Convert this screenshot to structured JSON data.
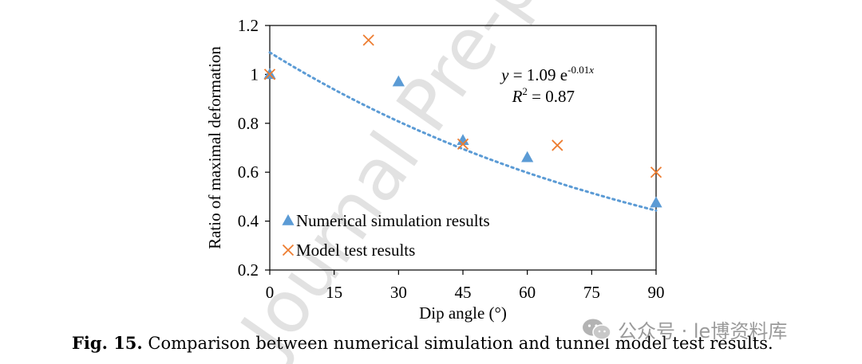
{
  "chart_data": {
    "type": "scatter",
    "xlabel": "Dip angle (°)",
    "ylabel": "Ratio of maximal deformation",
    "xlim": [
      0,
      90
    ],
    "ylim": [
      0.2,
      1.2
    ],
    "x_ticks": [
      "0",
      "15",
      "30",
      "45",
      "60",
      "75",
      "90"
    ],
    "y_ticks": [
      "0.2",
      "0.4",
      "0.6",
      "0.8",
      "1",
      "1.2"
    ],
    "series": [
      {
        "name": "Numerical simulation results",
        "marker": "triangle",
        "color": "#5b9bd5",
        "points": [
          [
            0,
            1.0
          ],
          [
            30,
            0.97
          ],
          [
            45,
            0.73
          ],
          [
            60,
            0.66
          ],
          [
            90,
            0.475
          ]
        ]
      },
      {
        "name": "Model test results",
        "marker": "x",
        "color": "#ed7d31",
        "points": [
          [
            0,
            1.0
          ],
          [
            23,
            1.14
          ],
          [
            45,
            0.715
          ],
          [
            67,
            0.71
          ],
          [
            90,
            0.6
          ]
        ]
      }
    ],
    "trendline": {
      "type": "exponential",
      "a": 1.09,
      "b": -0.01,
      "x_range": [
        0,
        90
      ],
      "color": "#5b9bd5",
      "equation_parts": [
        "y",
        " = 1.09 e",
        "-0.01",
        "x"
      ],
      "r2_parts": [
        "R",
        "2",
        " = 0.87"
      ]
    },
    "grid": false,
    "legend_position": "bottom-left"
  },
  "watermark": "Journal Pre-proof",
  "caption": {
    "label": "Fig. 15.",
    "text": " Comparison between numerical simulation and tunnel model test results."
  },
  "wechat": {
    "text": "公众号 · le博资料库",
    "icon": "wechat-icon"
  }
}
